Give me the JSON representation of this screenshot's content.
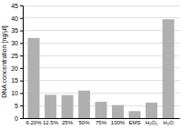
{
  "chart_data": {
    "type": "bar",
    "categories": [
      "6.20%",
      "12.5%",
      "25%",
      "50%",
      "75%",
      "100%",
      "EMS",
      "H₂O₂",
      "H₂O"
    ],
    "values": [
      32,
      9.3,
      9.2,
      11,
      6.5,
      5.2,
      2.8,
      6.2,
      39.5
    ],
    "color": "#b0b0b0",
    "ylabel": "DNA concentration [ng/µl]",
    "ylim": [
      0,
      45
    ],
    "yticks": [
      0,
      5,
      10,
      15,
      20,
      25,
      30,
      35,
      40,
      45
    ],
    "grid": true
  }
}
